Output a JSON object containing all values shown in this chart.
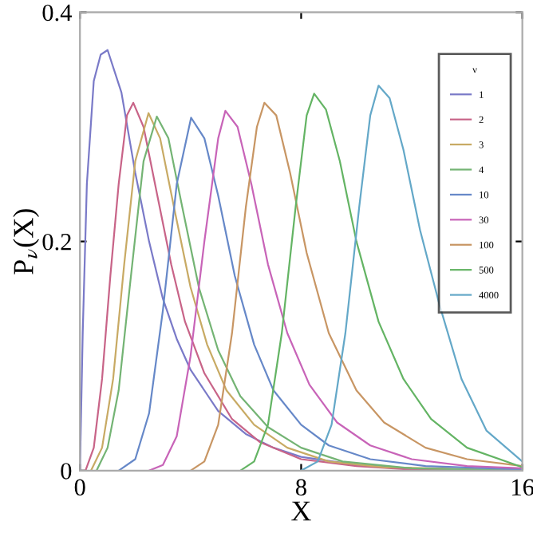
{
  "chart_data": {
    "type": "line",
    "xlabel": "X",
    "ylabel": "P$_{ν}$(X)",
    "legend_title": "ν",
    "legend": "top right",
    "grid": false,
    "marker": "none",
    "line_style": "solid",
    "xlim": [
      0,
      16
    ],
    "ylim": [
      0,
      0.4
    ],
    "xticks": [
      0,
      8,
      16
    ],
    "yticks": [
      0,
      0.2,
      0.4
    ],
    "series": [
      {
        "name": "1",
        "color": "#7a7ac8",
        "x": [
          0,
          0.1,
          0.25,
          0.5,
          0.75,
          1.0,
          1.5,
          2,
          2.5,
          3,
          3.5,
          4,
          5,
          6,
          7,
          8,
          10,
          12,
          16
        ],
        "values": [
          0,
          0.12,
          0.25,
          0.34,
          0.363,
          0.367,
          0.33,
          0.26,
          0.2,
          0.15,
          0.115,
          0.088,
          0.052,
          0.032,
          0.02,
          0.012,
          0.005,
          0.002,
          0
        ]
      },
      {
        "name": "2",
        "color": "#c86488",
        "x": [
          0.2,
          0.5,
          0.8,
          1.1,
          1.4,
          1.7,
          1.93,
          2.3,
          2.8,
          3.3,
          3.8,
          4.5,
          5.5,
          6.5,
          8,
          10,
          12,
          16
        ],
        "values": [
          0,
          0.02,
          0.08,
          0.17,
          0.25,
          0.31,
          0.321,
          0.3,
          0.24,
          0.18,
          0.13,
          0.085,
          0.045,
          0.025,
          0.01,
          0.004,
          0.001,
          0
        ]
      },
      {
        "name": "3",
        "color": "#c8aa64",
        "x": [
          0.4,
          0.8,
          1.2,
          1.6,
          2.0,
          2.48,
          2.9,
          3.4,
          4,
          4.6,
          5.3,
          6.3,
          7.5,
          9,
          11,
          16
        ],
        "values": [
          0,
          0.02,
          0.08,
          0.18,
          0.27,
          0.312,
          0.29,
          0.23,
          0.16,
          0.11,
          0.07,
          0.04,
          0.02,
          0.008,
          0.003,
          0
        ]
      },
      {
        "name": "4",
        "color": "#74b474",
        "x": [
          0.6,
          1.0,
          1.4,
          1.8,
          2.3,
          2.78,
          3.2,
          3.7,
          4.3,
          5,
          5.8,
          6.8,
          8,
          9.5,
          12,
          16
        ],
        "values": [
          0,
          0.02,
          0.07,
          0.16,
          0.27,
          0.309,
          0.29,
          0.23,
          0.16,
          0.105,
          0.065,
          0.038,
          0.02,
          0.008,
          0.002,
          0
        ]
      },
      {
        "name": "10",
        "color": "#6688c8",
        "x": [
          1.4,
          2,
          2.5,
          3,
          3.5,
          4.02,
          4.5,
          5,
          5.6,
          6.3,
          7,
          8,
          9,
          10.5,
          12.5,
          16
        ],
        "values": [
          0,
          0.01,
          0.05,
          0.14,
          0.25,
          0.308,
          0.29,
          0.24,
          0.17,
          0.11,
          0.07,
          0.04,
          0.022,
          0.01,
          0.004,
          0.001
        ]
      },
      {
        "name": "30",
        "color": "#c864b8",
        "x": [
          2.5,
          3,
          3.5,
          4,
          4.5,
          5.0,
          5.26,
          5.7,
          6.2,
          6.8,
          7.5,
          8.3,
          9.3,
          10.5,
          12,
          14,
          16
        ],
        "values": [
          0,
          0.005,
          0.03,
          0.1,
          0.2,
          0.29,
          0.314,
          0.3,
          0.25,
          0.18,
          0.12,
          0.075,
          0.042,
          0.022,
          0.01,
          0.004,
          0.002
        ]
      },
      {
        "name": "100",
        "color": "#c89664",
        "x": [
          4,
          4.5,
          5,
          5.5,
          6,
          6.4,
          6.67,
          7.1,
          7.6,
          8.2,
          9,
          10,
          11,
          12.5,
          14,
          16
        ],
        "values": [
          0,
          0.008,
          0.04,
          0.12,
          0.23,
          0.3,
          0.321,
          0.31,
          0.26,
          0.19,
          0.12,
          0.07,
          0.042,
          0.02,
          0.01,
          0.004
        ]
      },
      {
        "name": "500",
        "color": "#64b464",
        "x": [
          5.8,
          6.3,
          6.8,
          7.3,
          7.8,
          8.2,
          8.47,
          8.9,
          9.4,
          10,
          10.8,
          11.7,
          12.7,
          14,
          16
        ],
        "values": [
          0,
          0.008,
          0.04,
          0.12,
          0.23,
          0.31,
          0.329,
          0.315,
          0.27,
          0.2,
          0.13,
          0.08,
          0.045,
          0.02,
          0.003
        ]
      },
      {
        "name": "4000",
        "color": "#64a8c8",
        "x": [
          8,
          8.6,
          9.1,
          9.6,
          10.1,
          10.5,
          10.8,
          11.2,
          11.7,
          12.3,
          13,
          13.8,
          14.7,
          16
        ],
        "values": [
          0,
          0.008,
          0.04,
          0.12,
          0.23,
          0.31,
          0.336,
          0.325,
          0.28,
          0.21,
          0.145,
          0.08,
          0.035,
          0.008
        ]
      }
    ]
  }
}
